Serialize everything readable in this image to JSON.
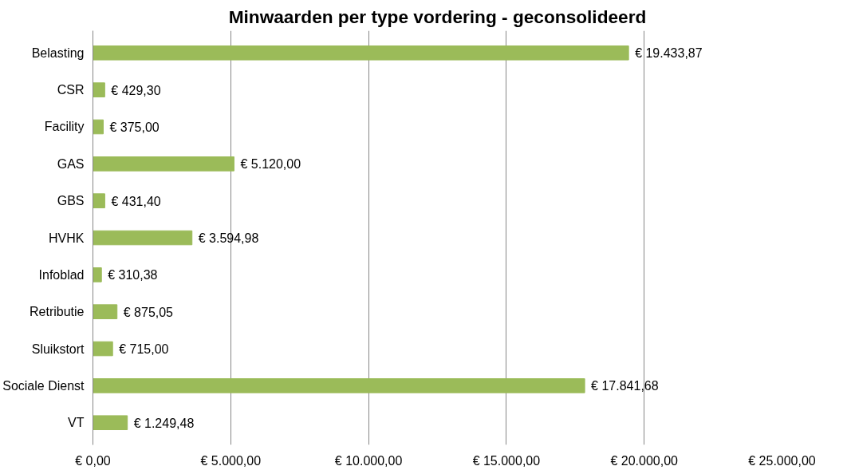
{
  "chart_data": {
    "type": "bar",
    "orientation": "horizontal",
    "title": "Minwaarden per type vordering - geconsolideerd",
    "categories": [
      "Belasting",
      "CSR",
      "Facility",
      "GAS",
      "GBS",
      "HVHK",
      "Infoblad",
      "Retributie",
      "Sluikstort",
      "Sociale Dienst",
      "VT"
    ],
    "values": [
      19433.87,
      429.3,
      375.0,
      5120.0,
      431.4,
      3594.98,
      310.38,
      875.05,
      715.0,
      17841.68,
      1249.48
    ],
    "value_labels": [
      "€ 19.433,87",
      "€ 429,30",
      "€ 375,00",
      "€ 5.120,00",
      "€ 431,40",
      "€ 3.594,98",
      "€ 310,38",
      "€ 875,05",
      "€ 715,00",
      "€ 17.841,68",
      "€ 1.249,48"
    ],
    "color": "#9bbb59",
    "xlim": [
      0,
      25000
    ],
    "xticks": [
      {
        "value": 0,
        "label": "€ 0,00"
      },
      {
        "value": 5000,
        "label": "€ 5.000,00"
      },
      {
        "value": 10000,
        "label": "€ 10.000,00"
      },
      {
        "value": 15000,
        "label": "€ 15.000,00"
      },
      {
        "value": 20000,
        "label": "€ 20.000,00"
      },
      {
        "value": 25000,
        "label": "€ 25.000,00"
      }
    ],
    "grid": "x"
  }
}
